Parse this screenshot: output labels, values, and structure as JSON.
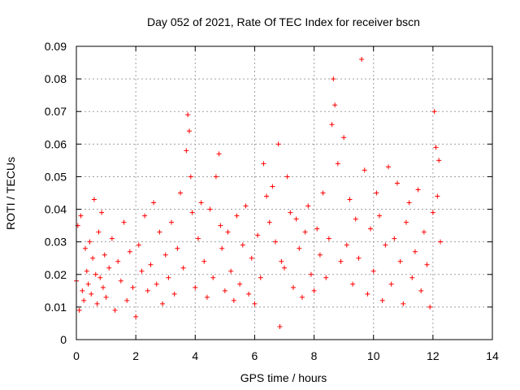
{
  "chart_data": {
    "type": "scatter",
    "title": "Day 052 of 2021, Rate Of TEC Index for receiver bscn",
    "xlabel": "GPS time / hours",
    "ylabel": "ROTI / TECUs",
    "xlim": [
      0,
      14
    ],
    "ylim": [
      0,
      0.09
    ],
    "xticks": [
      0,
      2,
      4,
      6,
      8,
      10,
      12,
      14
    ],
    "xtick_labels": [
      "0",
      "2",
      "4",
      "6",
      "8",
      "10",
      "12",
      "14"
    ],
    "yticks": [
      0,
      0.01,
      0.02,
      0.03,
      0.04,
      0.05,
      0.06,
      0.07,
      0.08,
      0.09
    ],
    "ytick_labels": [
      "0",
      "0.01",
      "0.02",
      "0.03",
      "0.04",
      "0.05",
      "0.06",
      "0.07",
      "0.08",
      "0.09"
    ],
    "grid": true,
    "marker": "+",
    "color": "#ff0000",
    "series": [
      {
        "x": [
          0.0,
          0.05,
          0.1,
          0.15,
          0.2,
          0.25,
          0.3,
          0.35,
          0.4,
          0.45,
          0.5,
          0.55,
          0.6,
          0.65,
          0.7,
          0.75,
          0.8,
          0.85,
          0.9,
          0.95,
          1.0,
          1.1,
          1.2,
          1.3,
          1.4,
          1.5,
          1.6,
          1.7,
          1.8,
          1.9,
          2.0,
          2.1,
          2.2,
          2.3,
          2.4,
          2.5,
          2.6,
          2.7,
          2.8,
          2.9,
          3.0,
          3.1,
          3.2,
          3.3,
          3.4,
          3.5,
          3.6,
          3.7,
          3.75,
          3.8,
          3.85,
          3.9,
          4.0,
          4.1,
          4.2,
          4.3,
          4.4,
          4.5,
          4.6,
          4.7,
          4.8,
          4.85,
          4.9,
          5.0,
          5.1,
          5.2,
          5.3,
          5.4,
          5.5,
          5.6,
          5.7,
          5.8,
          5.9,
          6.0,
          6.1,
          6.2,
          6.3,
          6.4,
          6.5,
          6.6,
          6.7,
          6.8,
          6.85,
          6.9,
          7.0,
          7.1,
          7.2,
          7.3,
          7.4,
          7.5,
          7.6,
          7.7,
          7.8,
          7.9,
          8.0,
          8.1,
          8.2,
          8.3,
          8.4,
          8.5,
          8.6,
          8.65,
          8.7,
          8.8,
          8.9,
          9.0,
          9.1,
          9.2,
          9.3,
          9.4,
          9.5,
          9.6,
          9.7,
          9.8,
          9.9,
          10.0,
          10.1,
          10.2,
          10.3,
          10.4,
          10.5,
          10.6,
          10.7,
          10.8,
          10.9,
          11.0,
          11.1,
          11.2,
          11.3,
          11.4,
          11.5,
          11.6,
          11.7,
          11.8,
          11.9,
          12.0,
          12.05,
          12.1,
          12.15,
          12.2,
          12.25
        ],
        "y": [
          0.018,
          0.035,
          0.009,
          0.038,
          0.015,
          0.012,
          0.028,
          0.021,
          0.017,
          0.03,
          0.014,
          0.025,
          0.043,
          0.02,
          0.011,
          0.033,
          0.019,
          0.039,
          0.016,
          0.026,
          0.013,
          0.022,
          0.031,
          0.009,
          0.024,
          0.018,
          0.036,
          0.012,
          0.027,
          0.016,
          0.007,
          0.029,
          0.021,
          0.038,
          0.015,
          0.023,
          0.042,
          0.017,
          0.033,
          0.011,
          0.026,
          0.019,
          0.036,
          0.014,
          0.028,
          0.045,
          0.022,
          0.058,
          0.069,
          0.064,
          0.05,
          0.039,
          0.016,
          0.031,
          0.042,
          0.024,
          0.013,
          0.04,
          0.019,
          0.05,
          0.057,
          0.035,
          0.028,
          0.015,
          0.033,
          0.021,
          0.012,
          0.038,
          0.017,
          0.029,
          0.041,
          0.014,
          0.025,
          0.011,
          0.032,
          0.019,
          0.054,
          0.044,
          0.036,
          0.047,
          0.03,
          0.06,
          0.004,
          0.024,
          0.022,
          0.05,
          0.039,
          0.016,
          0.037,
          0.028,
          0.013,
          0.033,
          0.041,
          0.02,
          0.015,
          0.034,
          0.026,
          0.045,
          0.019,
          0.031,
          0.066,
          0.08,
          0.072,
          0.054,
          0.024,
          0.062,
          0.029,
          0.043,
          0.017,
          0.037,
          0.025,
          0.086,
          0.052,
          0.014,
          0.034,
          0.021,
          0.045,
          0.038,
          0.012,
          0.029,
          0.053,
          0.017,
          0.031,
          0.048,
          0.024,
          0.011,
          0.036,
          0.042,
          0.019,
          0.027,
          0.046,
          0.015,
          0.033,
          0.023,
          0.01,
          0.039,
          0.07,
          0.059,
          0.044,
          0.055,
          0.03
        ]
      }
    ]
  }
}
